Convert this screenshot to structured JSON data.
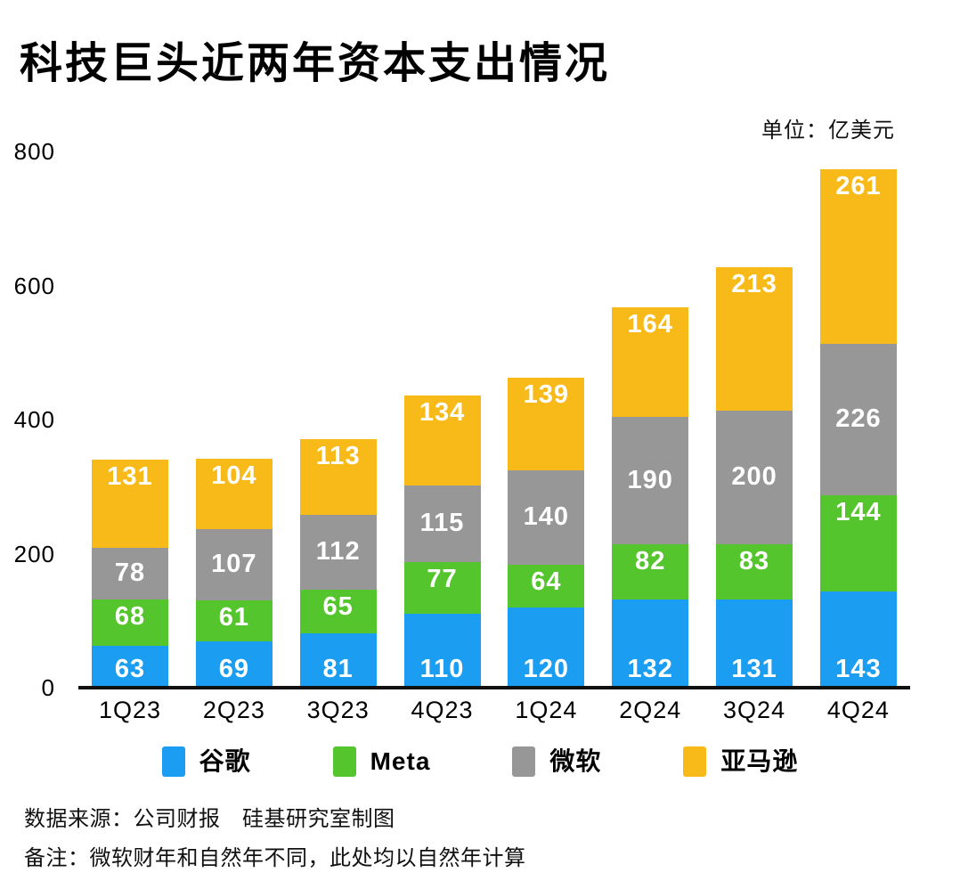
{
  "header": {
    "title": "科技巨头近两年资本支出情况",
    "unit_label": "单位：亿美元"
  },
  "chart_data": {
    "type": "bar",
    "stacked": true,
    "title": "科技巨头近两年资本支出情况",
    "unit": "亿美元",
    "categories": [
      "1Q23",
      "2Q23",
      "3Q23",
      "4Q23",
      "1Q24",
      "2Q24",
      "3Q24",
      "4Q24"
    ],
    "series": [
      {
        "name": "谷歌",
        "color": "#1b9df1",
        "label_position": "bottom",
        "values": [
          63,
          69,
          81,
          110,
          120,
          132,
          131,
          143
        ]
      },
      {
        "name": "Meta",
        "color": "#55c52e",
        "label_position": "top",
        "values": [
          68,
          61,
          65,
          77,
          64,
          82,
          83,
          144
        ]
      },
      {
        "name": "微软",
        "color": "#979797",
        "label_position": "center",
        "values": [
          78,
          107,
          112,
          115,
          140,
          190,
          200,
          226
        ]
      },
      {
        "name": "亚马逊",
        "color": "#f8ba18",
        "label_position": "top",
        "values": [
          131,
          104,
          113,
          134,
          139,
          164,
          213,
          261
        ]
      }
    ],
    "totals": [
      340,
      341,
      371,
      436,
      463,
      568,
      627,
      774
    ],
    "ylim": [
      0,
      800
    ],
    "yticks": [
      0,
      200,
      400,
      600,
      800
    ],
    "grid": false,
    "legend_position": "bottom",
    "value_labels": true,
    "value_label_color": "#ffffff"
  },
  "footer": {
    "source": "数据来源：公司财报　硅基研究室制图",
    "note": "备注：微软财年和自然年不同，此处均以自然年计算"
  }
}
